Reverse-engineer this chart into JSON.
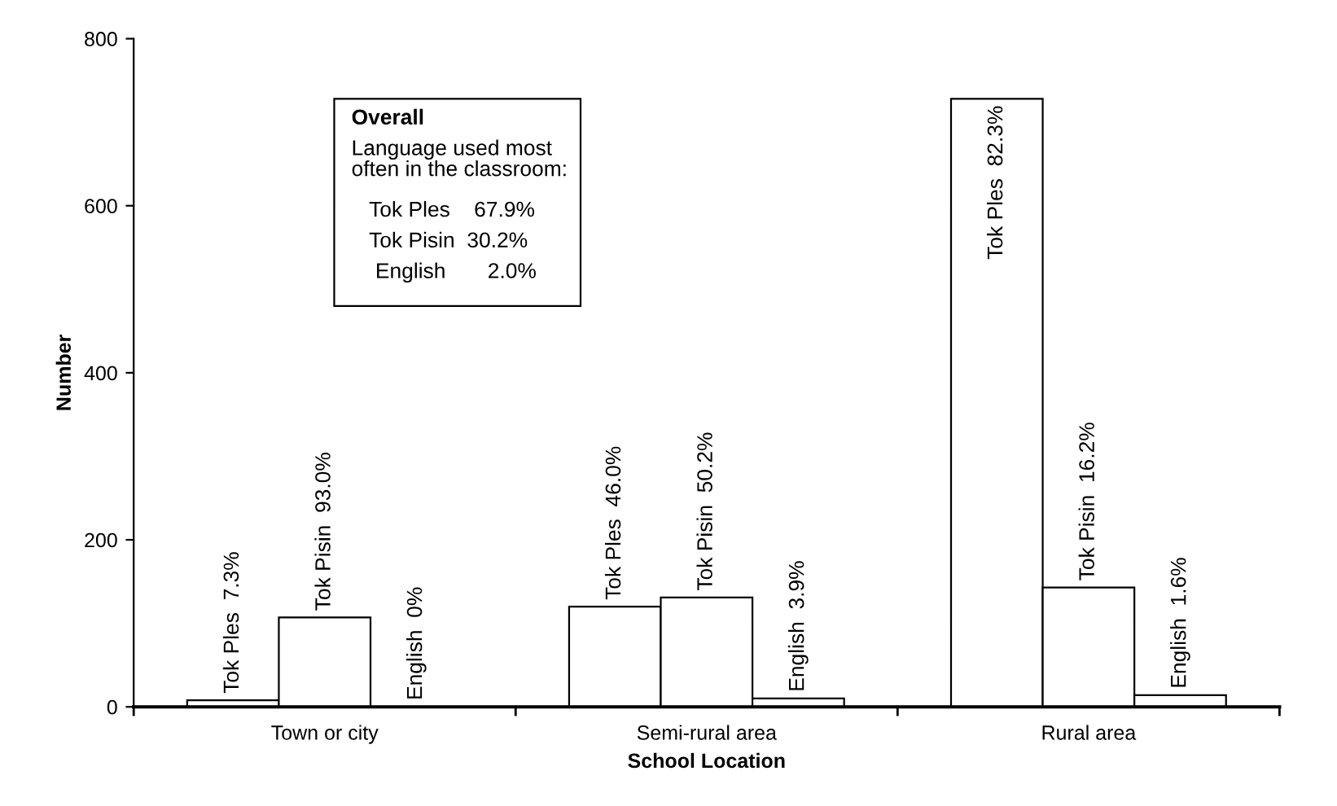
{
  "chart_data": {
    "type": "bar",
    "xlabel": "School Location",
    "ylabel": "Number",
    "categories": [
      "Town or city",
      "Semi-rural area",
      "Rural area"
    ],
    "series": [
      {
        "color": "#ffffff",
        "values": [
          8,
          120,
          728
        ],
        "value_labels": [
          "Tok Ples  7.3%",
          "Tok Ples  46.0%",
          "Tok Ples  82.3%"
        ]
      },
      {
        "color": "#ffffff",
        "values": [
          107,
          131,
          143
        ],
        "value_labels": [
          "Tok Pisin  93.0%",
          "Tok Pisin  50.2%",
          "Tok Pisin  16.2%"
        ]
      },
      {
        "color": "#ffffff",
        "values": [
          0,
          10,
          14
        ],
        "value_labels": [
          "English  0%",
          "English  3.9%",
          "English  1.6%"
        ]
      }
    ],
    "ylim": [
      0,
      800
    ],
    "yticks": [
      0,
      200,
      400,
      600,
      800
    ],
    "grid": false,
    "legend": false,
    "annotations": [
      "Overall",
      "Language used most\noften in the classroom:",
      "   Tok Ples    67.9%",
      "   Tok Pisin  30.2%",
      "    English       2.0%"
    ]
  }
}
